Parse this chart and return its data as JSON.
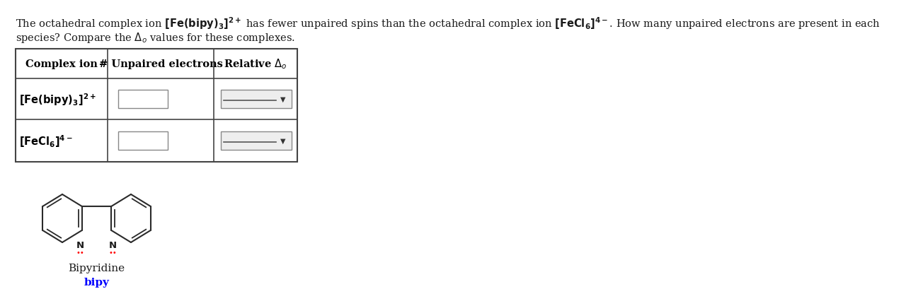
{
  "bg_color": "#ffffff",
  "text_color": "#1a1a1a",
  "para1": "The octahedral complex ion $\\mathbf{[Fe(bipy)_3]^{2+}}$ has fewer unpaired spins than the octahedral complex ion $\\mathbf{[FeCl_6]^{4-}}$. How many unpaired electrons are present in each",
  "para2": "species? Compare the $\\Delta_o$ values for these complexes.",
  "col_headers": [
    "Complex ion",
    "# Unpaired electrons",
    "Relative $\\Delta_o$"
  ],
  "row1_ion": "$\\mathbf{[Fe(bipy)_3]^{2+}}$",
  "row2_ion": "$\\mathbf{[FeCl_6]^{4-}}$",
  "bipy_label": "Bipyridine",
  "bipy_abbr": "bipy",
  "bipy_abbr_color": "#0000ff",
  "fig_width": 13.04,
  "fig_height": 4.27,
  "dpi": 100
}
